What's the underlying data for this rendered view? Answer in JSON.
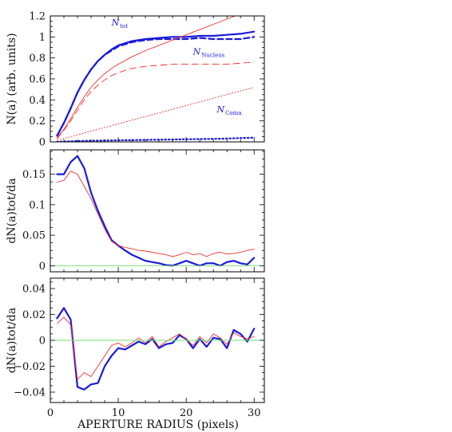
{
  "colors": {
    "axis": "#000000",
    "blue": "#1a1adc",
    "red": "#f03030",
    "green": "#6ee06e"
  },
  "xlabel": "APERTURE RADIUS (pixels)",
  "x_ticklabels": [
    "0",
    "10",
    "20",
    "30"
  ],
  "chart_data": [
    {
      "type": "line",
      "panel": "top",
      "ylabel": "N(a) (arb. units)",
      "xlim": [
        0,
        31.5
      ],
      "ylim": [
        0,
        1.2
      ],
      "y_ticks": [
        0,
        0.2,
        0.4,
        0.6,
        0.8,
        1,
        1.2
      ],
      "y_ticklabels": [
        "0",
        "0.2",
        "0.4",
        "0.6",
        "0.8",
        "1",
        "1.2"
      ],
      "annotations": [
        {
          "text": "N",
          "sub": "tot",
          "x": 9.0,
          "y": 1.11
        },
        {
          "text": "N",
          "sub": "Nucleus",
          "x": 21.0,
          "y": 0.83
        },
        {
          "text": "N",
          "sub": "Coma",
          "x": 24.5,
          "y": 0.28
        }
      ],
      "series": [
        {
          "style": "blue-solid-thick",
          "x": [
            1,
            2,
            3,
            4,
            5,
            6,
            7,
            8,
            9,
            10,
            12,
            14,
            16,
            18,
            20,
            22,
            24,
            26,
            28,
            30
          ],
          "y": [
            0.06,
            0.18,
            0.32,
            0.47,
            0.59,
            0.69,
            0.77,
            0.83,
            0.88,
            0.92,
            0.96,
            0.98,
            0.99,
            1.0,
            1.0,
            1.01,
            1.01,
            1.02,
            1.03,
            1.05
          ]
        },
        {
          "style": "blue-dashed-thick",
          "x": [
            1,
            2,
            3,
            4,
            5,
            6,
            7,
            8,
            9,
            10,
            12,
            14,
            16,
            18,
            20,
            22,
            24,
            26,
            28,
            30
          ],
          "y": [
            0.06,
            0.18,
            0.32,
            0.47,
            0.59,
            0.69,
            0.77,
            0.83,
            0.87,
            0.91,
            0.95,
            0.97,
            0.98,
            0.98,
            0.98,
            0.99,
            0.98,
            0.98,
            0.98,
            1.0
          ]
        },
        {
          "style": "red-solid-thin",
          "x": [
            1,
            2,
            3,
            4,
            5,
            6,
            7,
            8,
            9,
            10,
            12,
            14,
            16,
            18,
            20,
            22,
            24,
            26,
            28,
            30
          ],
          "y": [
            0.04,
            0.12,
            0.22,
            0.33,
            0.43,
            0.52,
            0.59,
            0.65,
            0.7,
            0.74,
            0.81,
            0.87,
            0.92,
            0.97,
            1.02,
            1.07,
            1.12,
            1.17,
            1.22,
            1.26
          ]
        },
        {
          "style": "red-dashed-thin",
          "x": [
            1,
            2,
            3,
            4,
            5,
            6,
            7,
            8,
            9,
            10,
            12,
            14,
            16,
            18,
            20,
            22,
            24,
            26,
            28,
            30
          ],
          "y": [
            0.03,
            0.11,
            0.2,
            0.3,
            0.4,
            0.48,
            0.54,
            0.59,
            0.63,
            0.66,
            0.7,
            0.72,
            0.73,
            0.74,
            0.74,
            0.74,
            0.74,
            0.74,
            0.75,
            0.76
          ]
        },
        {
          "style": "red-dotted-thin",
          "x": [
            1,
            30
          ],
          "y": [
            0.015,
            0.52
          ]
        },
        {
          "style": "blue-dotted-thick",
          "x": [
            1,
            5,
            10,
            15,
            20,
            25,
            30
          ],
          "y": [
            0.0,
            0.01,
            0.015,
            0.02,
            0.025,
            0.03,
            0.04
          ]
        }
      ]
    },
    {
      "type": "line",
      "panel": "middle",
      "ylabel": "dN(a)tot/da",
      "xlim": [
        0,
        31.5
      ],
      "ylim": [
        -0.01,
        0.19
      ],
      "y_ticks": [
        0,
        0.05,
        0.1,
        0.15
      ],
      "y_ticklabels": [
        "0",
        "0.05",
        "0.1",
        "0.15"
      ],
      "series": [
        {
          "style": "blue-solid-thick",
          "x": [
            1,
            2,
            3,
            4,
            5,
            6,
            7,
            8,
            9,
            10,
            11,
            12,
            13,
            14,
            15,
            16,
            17,
            18,
            19,
            20,
            21,
            22,
            23,
            24,
            25,
            26,
            27,
            28,
            29,
            30
          ],
          "y": [
            0.15,
            0.15,
            0.17,
            0.18,
            0.16,
            0.12,
            0.09,
            0.065,
            0.042,
            0.033,
            0.025,
            0.018,
            0.013,
            0.008,
            0.006,
            0.004,
            0.001,
            0.0,
            0.004,
            0.008,
            0.004,
            0.0,
            0.004,
            0.004,
            0.0,
            0.006,
            0.008,
            0.004,
            0.002,
            0.013
          ]
        },
        {
          "style": "red-solid-thin",
          "x": [
            1,
            2,
            3,
            4,
            5,
            6,
            7,
            8,
            9,
            10,
            11,
            12,
            13,
            14,
            15,
            16,
            17,
            18,
            19,
            20,
            21,
            22,
            23,
            24,
            25,
            26,
            27,
            28,
            29,
            30
          ],
          "y": [
            0.137,
            0.14,
            0.155,
            0.15,
            0.13,
            0.11,
            0.085,
            0.06,
            0.04,
            0.033,
            0.03,
            0.028,
            0.025,
            0.024,
            0.022,
            0.02,
            0.018,
            0.015,
            0.018,
            0.022,
            0.018,
            0.02,
            0.015,
            0.02,
            0.022,
            0.019,
            0.02,
            0.022,
            0.025,
            0.027
          ]
        },
        {
          "style": "green-solid-thin",
          "x": [
            0,
            31.5
          ],
          "y": [
            0,
            0
          ]
        }
      ]
    },
    {
      "type": "line",
      "panel": "bottom",
      "ylabel": "dN(a)tot/da",
      "xlim": [
        0,
        31.5
      ],
      "ylim": [
        -0.048,
        0.048
      ],
      "y_ticks": [
        -0.04,
        -0.02,
        0,
        0.02,
        0.04
      ],
      "y_ticklabels": [
        "−0.04",
        "−0.02",
        "0",
        "0.02",
        "0.04"
      ],
      "series": [
        {
          "style": "blue-solid-thick",
          "x": [
            1,
            2,
            3,
            4,
            5,
            6,
            7,
            8,
            9,
            10,
            11,
            12,
            13,
            14,
            15,
            16,
            17,
            18,
            19,
            20,
            21,
            22,
            23,
            24,
            25,
            26,
            27,
            28,
            29,
            30
          ],
          "y": [
            0.017,
            0.025,
            0.016,
            -0.036,
            -0.038,
            -0.034,
            -0.033,
            -0.02,
            -0.012,
            -0.006,
            -0.007,
            -0.004,
            -0.001,
            -0.003,
            0.001,
            -0.006,
            -0.003,
            -0.002,
            0.004,
            0.001,
            -0.006,
            0.001,
            -0.005,
            0.002,
            0.001,
            -0.006,
            0.008,
            0.005,
            -0.001,
            0.009
          ]
        },
        {
          "style": "red-solid-thin",
          "x": [
            1,
            2,
            3,
            4,
            5,
            6,
            7,
            8,
            9,
            10,
            11,
            12,
            13,
            14,
            15,
            16,
            17,
            18,
            19,
            20,
            21,
            22,
            23,
            24,
            25,
            26,
            27,
            28,
            29,
            30
          ],
          "y": [
            0.013,
            0.018,
            0.012,
            -0.03,
            -0.025,
            -0.028,
            -0.02,
            -0.012,
            -0.004,
            -0.002,
            -0.005,
            -0.002,
            0.002,
            -0.002,
            0.003,
            -0.005,
            -0.001,
            0.002,
            0.005,
            0.001,
            -0.004,
            0.003,
            -0.002,
            0.005,
            0.002,
            -0.003,
            0.006,
            0.003,
            0.001,
            0.003
          ]
        },
        {
          "style": "green-solid-thin",
          "x": [
            0,
            31.5
          ],
          "y": [
            0,
            0
          ]
        }
      ]
    }
  ]
}
